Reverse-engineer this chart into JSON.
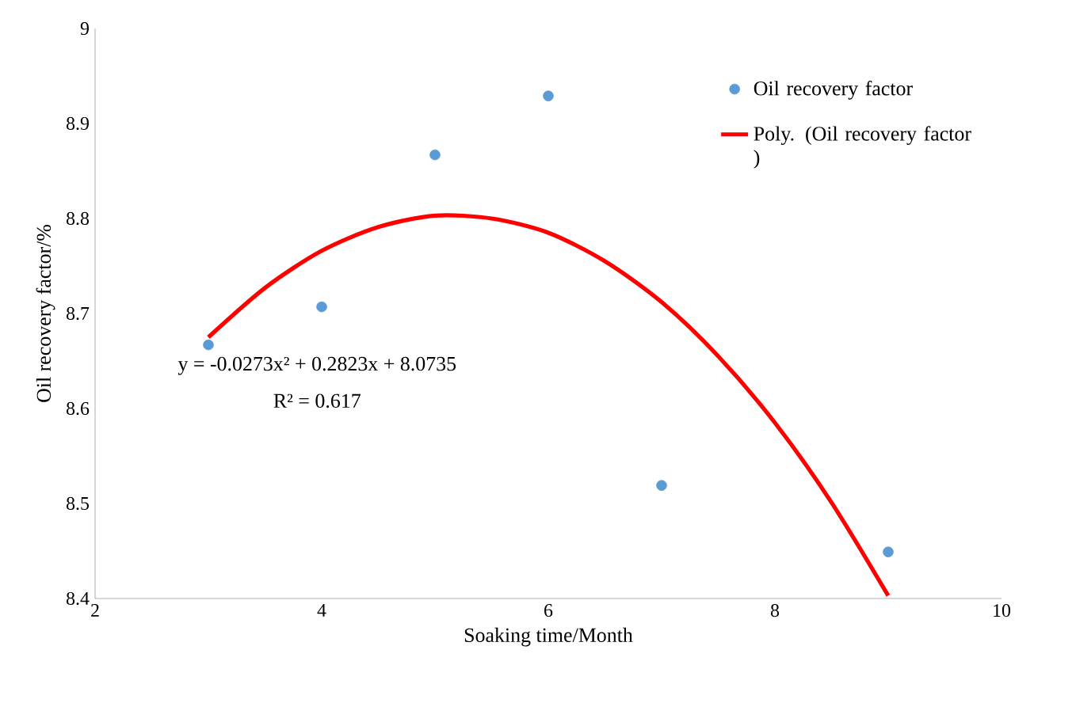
{
  "chart_data": {
    "type": "scatter",
    "xlabel": "Soaking time/Month",
    "ylabel": "Oil recovery factor/%",
    "xlim": [
      2,
      10
    ],
    "xticks": [
      2,
      4,
      6,
      8,
      10
    ],
    "ylim": [
      8.4,
      9
    ],
    "yticks": [
      {
        "value": 8.4,
        "label": "8.4"
      },
      {
        "value": 8.5,
        "label": "8.5"
      },
      {
        "value": 8.6,
        "label": "8.6"
      },
      {
        "value": 8.7,
        "label": "8.7"
      },
      {
        "value": 8.8,
        "label": "8.8"
      },
      {
        "value": 8.9,
        "label": "8.9"
      },
      {
        "value": 9,
        "label": "9"
      }
    ],
    "grid": false,
    "legend": "right",
    "series": [
      {
        "name": "Oil recovery factor",
        "marker": "circle",
        "color": "#5b9bd5",
        "x": [
          3,
          4,
          5,
          6,
          7,
          9
        ],
        "values": [
          8.667,
          8.707,
          8.867,
          8.929,
          8.519,
          8.449
        ]
      },
      {
        "name": "Poly. (Oil recovery factor )",
        "type": "line",
        "color": "#ff0000",
        "x": [
          3,
          3.5,
          4,
          4.5,
          5,
          5.5,
          6,
          6.5,
          7,
          7.5,
          8,
          8.5,
          9
        ],
        "values": [
          8.675,
          8.727,
          8.766,
          8.791,
          8.803,
          8.8,
          8.785,
          8.755,
          8.712,
          8.655,
          8.585,
          8.501,
          8.403
        ]
      }
    ],
    "annotations": [
      "y = -0.0273x² + 0.2823x + 8.0735",
      "R² = 0.617"
    ]
  }
}
